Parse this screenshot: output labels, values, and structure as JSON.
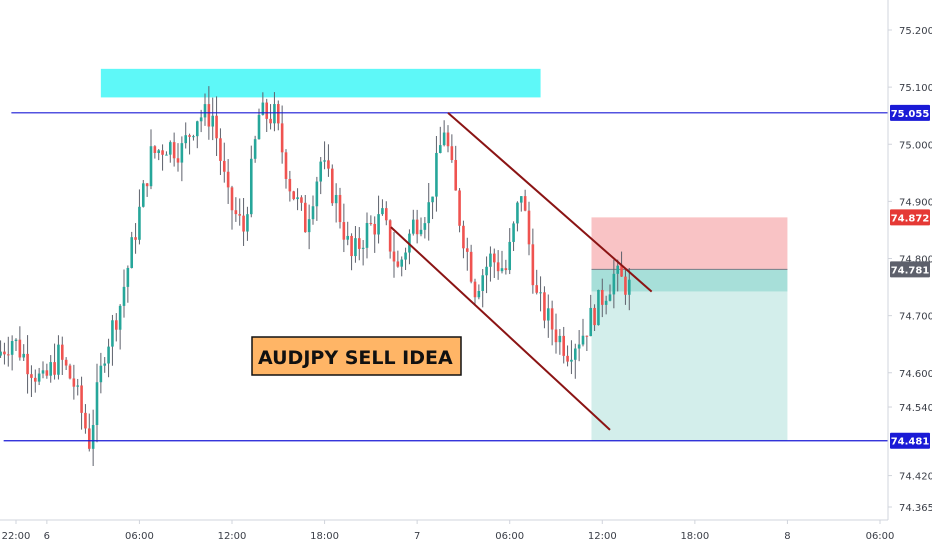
{
  "chart_data": {
    "type": "candlestick",
    "title": "AUDJPY SELL IDEA",
    "ylim": [
      74.33,
      75.26
    ],
    "y_ticks": [
      "75.200",
      "75.100",
      "75.000",
      "74.900",
      "74.800",
      "74.700",
      "74.600",
      "74.540",
      "74.420",
      "74.365"
    ],
    "y_tick_values": [
      75.2,
      75.1,
      75.0,
      74.9,
      74.8,
      74.7,
      74.6,
      74.54,
      74.42,
      74.365
    ],
    "x_ticks": [
      "22:00",
      "6",
      "06:00",
      "12:00",
      "18:00",
      "7",
      "06:00",
      "12:00",
      "18:00",
      "8",
      "06:00"
    ],
    "x_tick_hours": [
      0,
      2,
      8,
      14,
      20,
      26,
      32,
      38,
      44,
      50,
      56
    ],
    "price_tags": [
      {
        "label": "75.055",
        "value": 75.055,
        "color": "#1a1ad6"
      },
      {
        "label": "74.872",
        "value": 74.872,
        "color": "#e53935"
      },
      {
        "label": "74.781",
        "value": 74.781,
        "color": "#5d606b"
      },
      {
        "label": "74.481",
        "value": 74.481,
        "color": "#1a1ad6"
      }
    ],
    "horizontal_lines": [
      {
        "value": 75.055,
        "from_hour": -0.3,
        "to_hour": 61
      },
      {
        "value": 74.481,
        "from_hour": -0.8,
        "to_hour": 61
      }
    ],
    "resistance_zone": {
      "from_hour": 5.5,
      "to_hour": 34,
      "y_high": 75.132,
      "y_low": 75.082,
      "color": "#5ef8f8"
    },
    "channel_lines": [
      {
        "from": [
          28,
          75.055
        ],
        "to": [
          41.2,
          74.742
        ]
      },
      {
        "from": [
          24.3,
          74.855
        ],
        "to": [
          38.5,
          74.5
        ]
      }
    ],
    "trade": {
      "from_hour": 37.3,
      "to_hour": 50,
      "stop": 74.872,
      "entry": 74.781,
      "target": 74.481,
      "near_target": 74.742,
      "stop_color": "#f9c3c5",
      "entry_band_color": "#a7dfd9",
      "target_color": "#d3eeeb"
    },
    "candles_x": [
      -1,
      0,
      1,
      2,
      3,
      4,
      5,
      6,
      7,
      8,
      9,
      10,
      11,
      12,
      13,
      14,
      15,
      16,
      17,
      18,
      19,
      20,
      21,
      22,
      23,
      24,
      25,
      26,
      27,
      28,
      29,
      30,
      31,
      32,
      33,
      34,
      35,
      36,
      37,
      38,
      39,
      40
    ],
    "close_path": [
      74.63,
      74.66,
      74.62,
      74.58,
      74.63,
      74.58,
      74.48,
      74.64,
      74.72,
      74.85,
      74.98,
      75.0,
      74.99,
      75.05,
      75.05,
      74.9,
      74.85,
      75.05,
      75.05,
      74.93,
      74.86,
      74.97,
      74.9,
      74.8,
      74.85,
      74.87,
      74.78,
      74.86,
      74.89,
      75.03,
      74.87,
      74.75,
      74.8,
      74.78,
      74.92,
      74.73,
      74.68,
      74.64,
      74.67,
      74.72,
      74.77,
      74.75
    ],
    "colors": {
      "up": "#26a69a",
      "down": "#ef5350",
      "axis_line": "#d1d4dc",
      "frame_text": "#3a3e47"
    }
  }
}
